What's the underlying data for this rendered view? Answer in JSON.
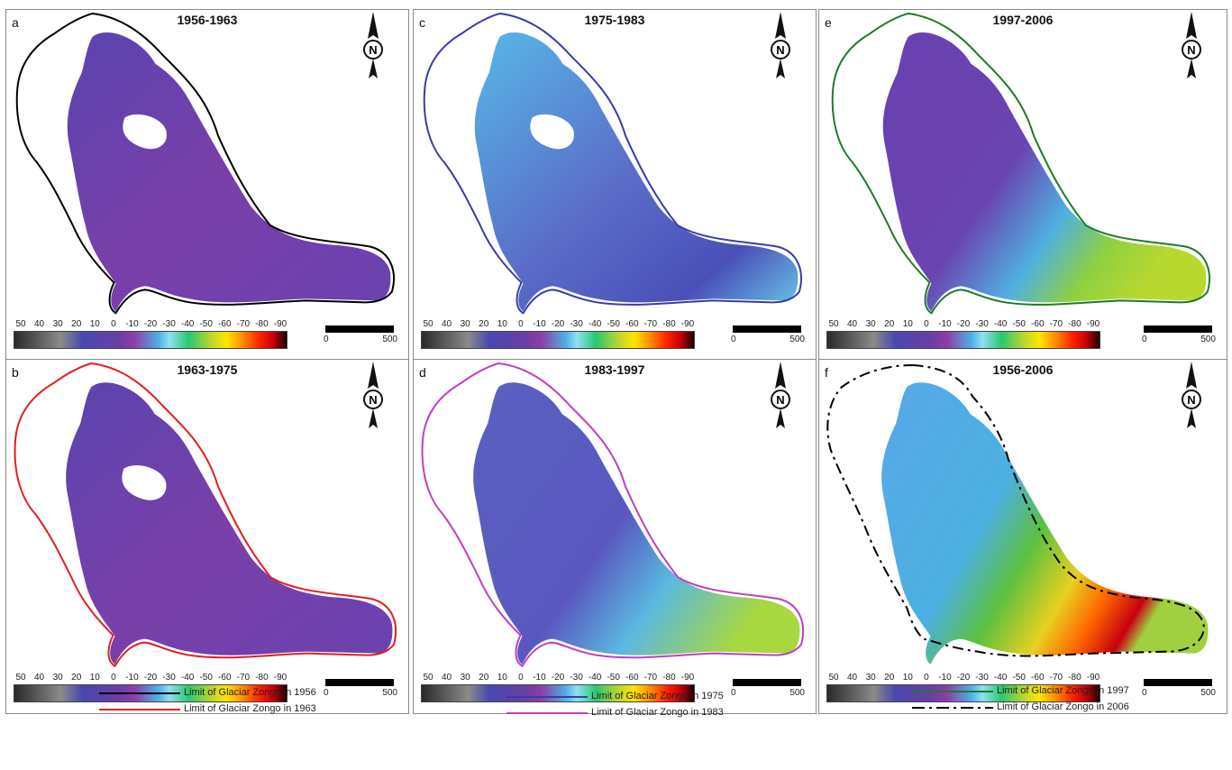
{
  "panels": [
    {
      "letter": "a",
      "title": "1956-1963",
      "outline": "#000000",
      "outline_style": "solid",
      "fill": "purple",
      "has_hole": true
    },
    {
      "letter": "c",
      "title": "1975-1983",
      "outline": "#3a3aa8",
      "outline_style": "solid",
      "fill": "blue",
      "has_hole": true
    },
    {
      "letter": "e",
      "title": "1997-2006",
      "outline": "#1f7a2a",
      "outline_style": "solid",
      "fill": "purple-green",
      "has_hole": false
    },
    {
      "letter": "b",
      "title": "1963-1975",
      "outline": "#e02020",
      "outline_style": "solid",
      "fill": "purple",
      "has_hole": true
    },
    {
      "letter": "d",
      "title": "1983-1997",
      "outline": "#c040c0",
      "outline_style": "solid",
      "fill": "blue-green",
      "has_hole": false
    },
    {
      "letter": "f",
      "title": "1956-2006",
      "outline": "#000000",
      "outline_style": "dashdot",
      "fill": "green-red",
      "has_hole": false
    }
  ],
  "north_label": "N",
  "colorbar_ticks": [
    "50",
    "40",
    "30",
    "20",
    "10",
    "0",
    "-10",
    "-20",
    "-30",
    "-40",
    "-50",
    "-60",
    "-70",
    "-80",
    "-90"
  ],
  "scalebar": {
    "start": "0",
    "end": "500"
  },
  "legend": [
    {
      "label": "Limit of Glaciar Zongo in 1956",
      "color": "#000000",
      "style": "solid"
    },
    {
      "label": "Limit of Glaciar Zongo in 1963",
      "color": "#e02020",
      "style": "solid"
    },
    {
      "label": "Limit of Glaciar Zongo in 1975",
      "color": "#3a3aa8",
      "style": "solid"
    },
    {
      "label": "Limit of Glaciar Zongo in 1983",
      "color": "#c040c0",
      "style": "solid"
    },
    {
      "label": "Limit of Glaciar Zongo in 1997",
      "color": "#1f7a2a",
      "style": "solid"
    },
    {
      "label": "Limit of Glaciar Zongo in 2006",
      "color": "#000000",
      "style": "dashdot"
    }
  ]
}
